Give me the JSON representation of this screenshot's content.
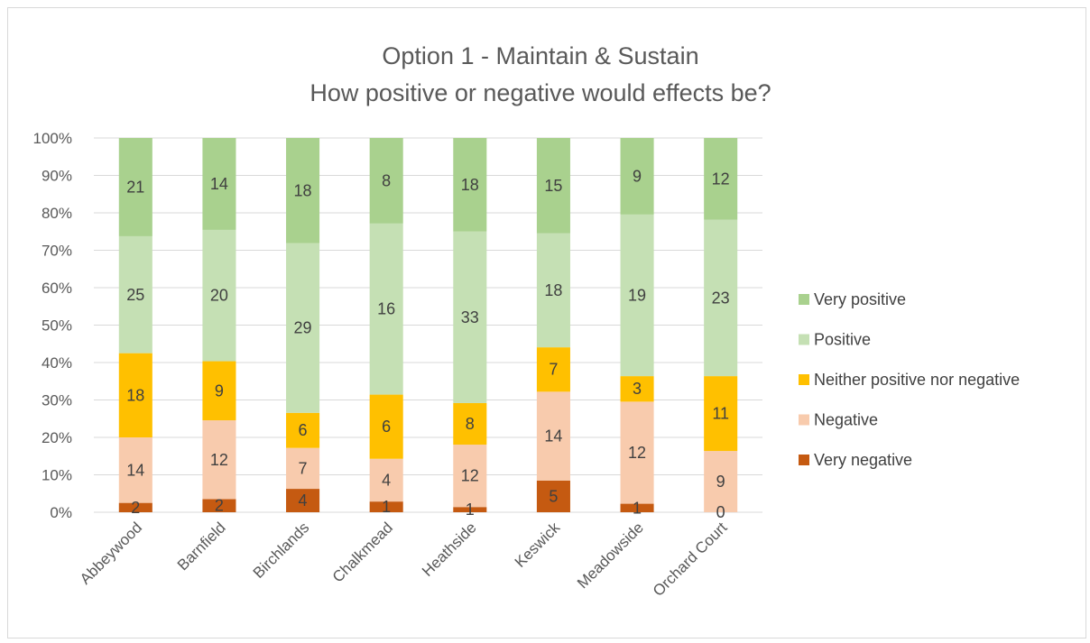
{
  "chart_data": {
    "type": "bar",
    "stacked": true,
    "normalized": true,
    "title": "Option 1 - Maintain & Sustain",
    "subtitle": "How positive or negative would effects be?",
    "categories": [
      "Abbeywood",
      "Barnfield",
      "Birchlands",
      "Chalkmead",
      "Heathside",
      "Keswick",
      "Meadowside",
      "Orchard Court"
    ],
    "series": [
      {
        "name": "Very negative",
        "color": "#c55a11",
        "values": [
          2,
          2,
          4,
          1,
          1,
          5,
          1,
          0
        ]
      },
      {
        "name": "Negative",
        "color": "#f8cbad",
        "values": [
          14,
          12,
          7,
          4,
          12,
          14,
          12,
          9
        ]
      },
      {
        "name": "Neither positive nor negative",
        "color": "#ffc000",
        "values": [
          18,
          9,
          6,
          6,
          8,
          7,
          3,
          11
        ]
      },
      {
        "name": "Positive",
        "color": "#c5e0b4",
        "values": [
          25,
          20,
          29,
          16,
          33,
          18,
          19,
          23
        ]
      },
      {
        "name": "Very positive",
        "color": "#a9d18e",
        "values": [
          21,
          14,
          18,
          8,
          18,
          15,
          9,
          12
        ]
      }
    ],
    "y_ticks": [
      "0%",
      "10%",
      "20%",
      "30%",
      "40%",
      "50%",
      "60%",
      "70%",
      "80%",
      "90%",
      "100%"
    ],
    "ylim": [
      0,
      100
    ],
    "grid": true,
    "legend_position": "right",
    "legend_order": [
      "Very positive",
      "Positive",
      "Neither positive nor negative",
      "Negative",
      "Very negative"
    ]
  }
}
